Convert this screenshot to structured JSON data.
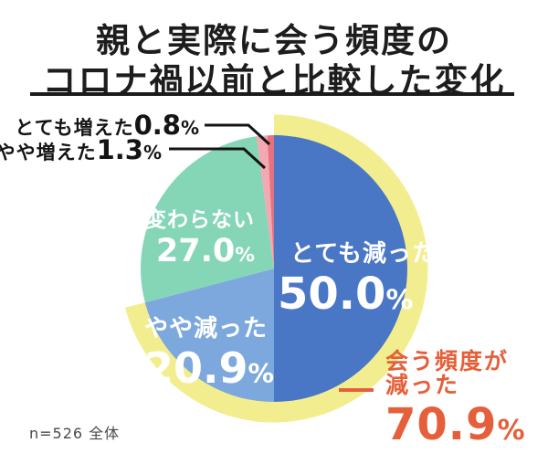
{
  "title": {
    "line1": "親と実際に会う頻度の",
    "line2": "コロナ禍以前と比較した変化"
  },
  "note": "n=526 全体",
  "chart_data": {
    "type": "pie",
    "title": "親と実際に会う頻度のコロナ禍以前と比較した変化",
    "unit": "%",
    "start_angle_deg": 0,
    "direction": "clockwise",
    "sample_note": "n=526 全体",
    "segments": [
      {
        "label": "とても減った",
        "value": 50.0,
        "display_value": "50.0",
        "color": "#4a76c6",
        "label_color": "#ffffff"
      },
      {
        "label": "やや減った",
        "value": 20.9,
        "display_value": "20.9",
        "color": "#7da8dd",
        "label_color": "#ffffff"
      },
      {
        "label": "変わらない",
        "value": 27.0,
        "display_value": "27.0",
        "color": "#85d6b7",
        "label_color": "#ffffff"
      },
      {
        "label": "やや増えた",
        "value": 1.3,
        "display_value": "1.3",
        "color": "#f3a8b2",
        "label_color": "#141414"
      },
      {
        "label": "とても増えた",
        "value": 0.8,
        "display_value": "0.8",
        "color": "#e7717f",
        "label_color": "#141414"
      }
    ],
    "highlight": {
      "label_line1": "会う頻度が",
      "label_line2": "減った",
      "value": 70.9,
      "display_value": "70.9",
      "text_color": "#e5603a",
      "band_color": "#f2ee8f",
      "covers_segments": [
        "とても減った",
        "やや減った"
      ]
    },
    "legend_position": "none",
    "grid": false
  }
}
